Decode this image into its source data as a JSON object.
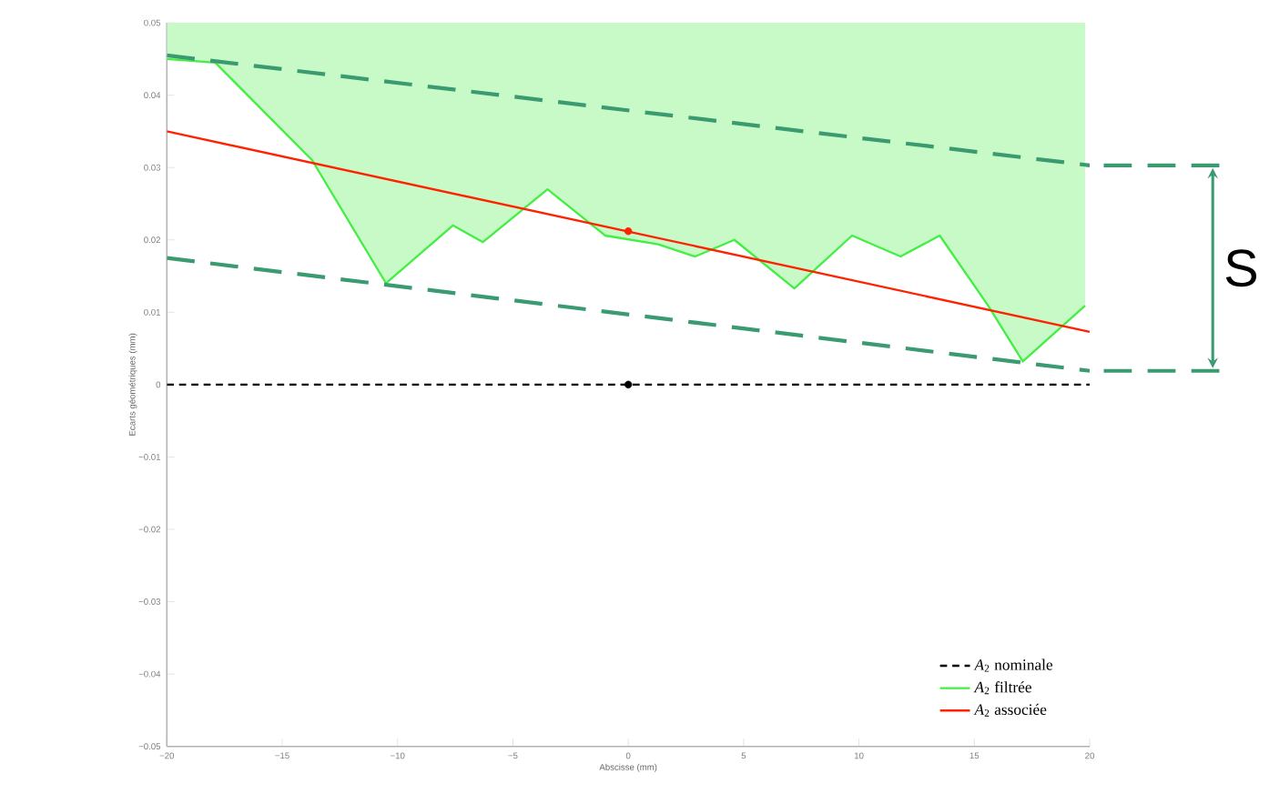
{
  "chart_data": {
    "type": "line",
    "xlabel": "Abscisse (mm)",
    "ylabel": "Ecarts géométriques (mm)",
    "annotations": [
      "S"
    ],
    "xlim": [
      -20,
      20
    ],
    "ylim": [
      -0.05,
      0.05
    ],
    "xticks": [
      {
        "value": -20,
        "label": "−20"
      },
      {
        "value": -15,
        "label": "−15"
      },
      {
        "value": -10,
        "label": "−10"
      },
      {
        "value": -5,
        "label": "−5"
      },
      0,
      5,
      10,
      15,
      20
    ],
    "yticks": [
      {
        "value": -0.05,
        "label": "−0.05"
      },
      {
        "value": -0.04,
        "label": "−0.04"
      },
      {
        "value": -0.03,
        "label": "−0.03"
      },
      {
        "value": -0.02,
        "label": "−0.02"
      },
      {
        "value": -0.01,
        "label": "−0.01"
      },
      0,
      0.01,
      0.02,
      0.03,
      0.04,
      0.05
    ],
    "legend": "bottom right",
    "grid": false,
    "series": [
      {
        "name": "*A*$_{2}$ nominale",
        "color": "#000000",
        "line_style": "dashed",
        "x": [
          -20,
          20
        ],
        "values": [
          0,
          0
        ]
      },
      {
        "name": "*A*$_{2}$ filtrée",
        "color": "#44ee44",
        "x": [
          -20,
          -17.9,
          -13.7,
          -10.5,
          -7.6,
          -6.3,
          -3.5,
          -1.0,
          1.3,
          2.9,
          4.6,
          7.2,
          9.7,
          11.8,
          13.5,
          15.6,
          17.1,
          19.8
        ],
        "values": [
          0.045,
          0.0445,
          0.031,
          0.014,
          0.022,
          0.0197,
          0.027,
          0.0206,
          0.0194,
          0.0177,
          0.02,
          0.0133,
          0.0206,
          0.0177,
          0.0206,
          0.0109,
          0.0032,
          0.0109
        ],
        "lower": [
          0.045,
          0.0445,
          0.031,
          0.014,
          0.022,
          0.0197,
          0.027,
          0.0206,
          0.0194,
          0.0177,
          0.02,
          0.0133,
          0.0206,
          0.0177,
          0.0206,
          0.0109,
          0.0032,
          0.0109
        ],
        "upper": [
          0.05,
          0.05,
          0.05,
          0.05,
          0.05,
          0.05,
          0.05,
          0.05,
          0.05,
          0.05,
          0.05,
          0.05,
          0.05,
          0.05,
          0.05,
          0.05,
          0.05,
          0.05
        ]
      },
      {
        "name": "*A*$_{2}$ associée",
        "color": "#ff2200",
        "x": [
          -20,
          20
        ],
        "values": [
          0.035,
          0.0073
        ]
      },
      {
        "color": "#3a9a70",
        "line_style": "dashed",
        "x": [
          -20,
          20
        ],
        "values": [
          0.0455,
          0.0303
        ]
      },
      {
        "color": "#3a9a70",
        "line_style": "dashed",
        "x": [
          -20,
          20
        ],
        "values": [
          0.0175,
          0.0019
        ]
      },
      {
        "type": "scatter",
        "color": "#ff2200",
        "x": [
          0
        ],
        "values": [
          0.0212
        ]
      },
      {
        "type": "scatter",
        "color": "#000000",
        "x": [
          0
        ],
        "values": [
          0
        ]
      }
    ]
  }
}
